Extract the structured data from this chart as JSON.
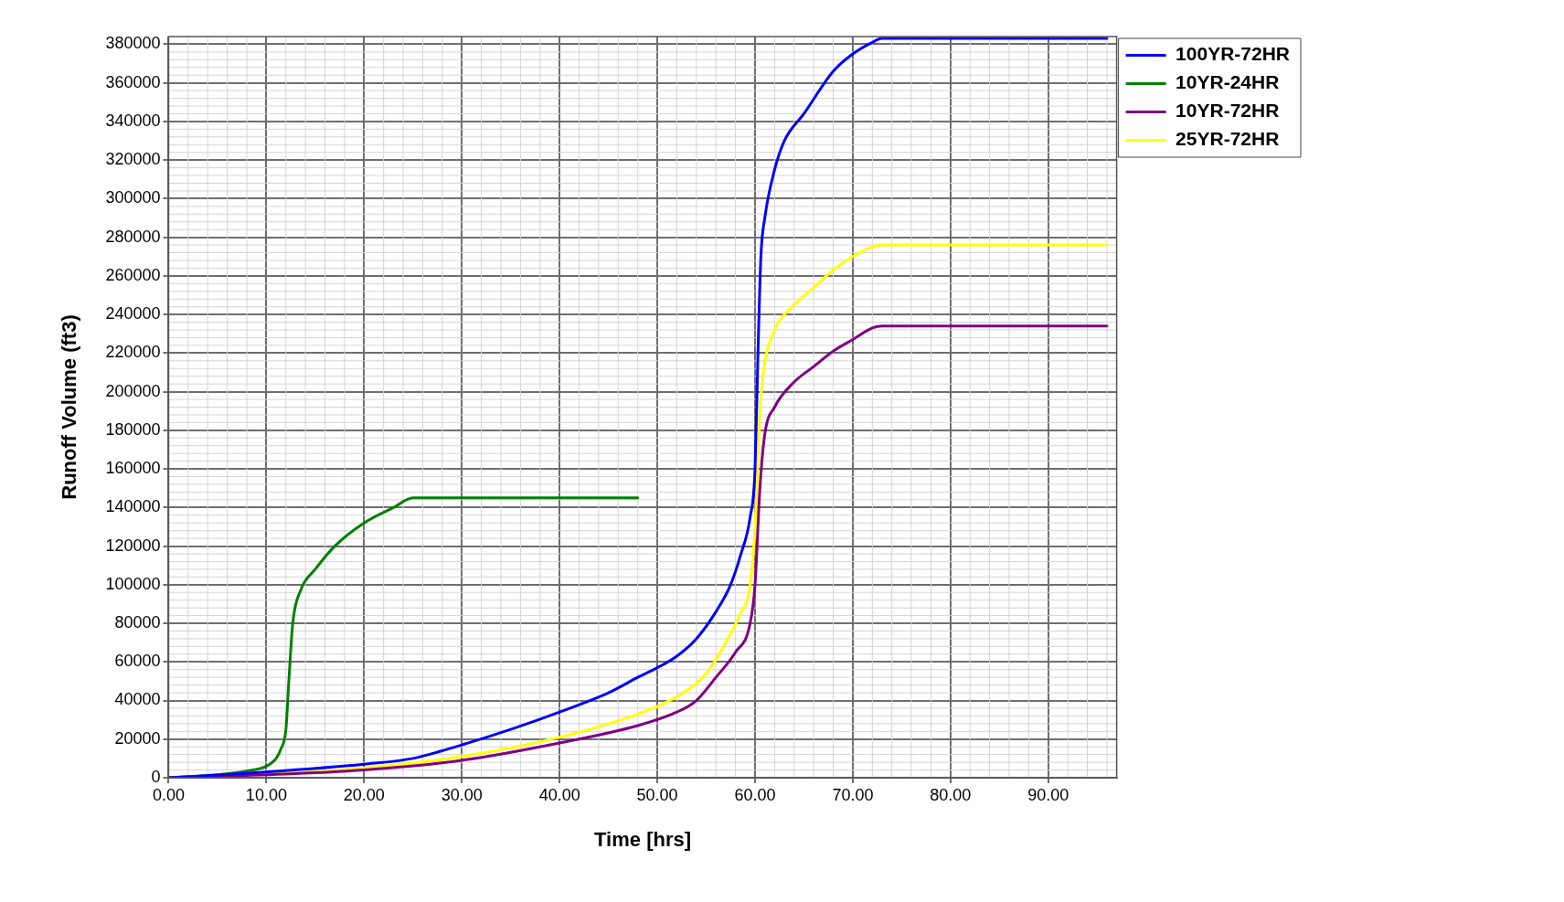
{
  "chart_data": {
    "type": "line",
    "xlabel": "Time [hrs]",
    "ylabel": "Runoff Volume (ft3)",
    "xlim": [
      0,
      97
    ],
    "ylim": [
      0,
      384000
    ],
    "xticks": [
      {
        "value": 0,
        "label": "0.00"
      },
      {
        "value": 10,
        "label": "10.00"
      },
      {
        "value": 20,
        "label": "20.00"
      },
      {
        "value": 30,
        "label": "30.00"
      },
      {
        "value": 40,
        "label": "40.00"
      },
      {
        "value": 50,
        "label": "50.00"
      },
      {
        "value": 60,
        "label": "60.00"
      },
      {
        "value": 70,
        "label": "70.00"
      },
      {
        "value": 80,
        "label": "80.00"
      },
      {
        "value": 90,
        "label": "90.00"
      }
    ],
    "yticks": [
      0,
      20000,
      40000,
      60000,
      80000,
      100000,
      120000,
      140000,
      160000,
      180000,
      200000,
      220000,
      240000,
      260000,
      280000,
      300000,
      320000,
      340000,
      360000,
      380000
    ],
    "grid": true,
    "legend": "top right",
    "marker": "none",
    "line_style": "solid",
    "series": [
      {
        "name": "100YR-72HR",
        "color": "#0000ff",
        "x": [
          0,
          10,
          20,
          25,
          30,
          35,
          40,
          45,
          48,
          50,
          52,
          54,
          56,
          57.5,
          58.5,
          59.5,
          60,
          60.3,
          60.6,
          61,
          62,
          63,
          65,
          68,
          70,
          72,
          73,
          96
        ],
        "values": [
          0,
          3000,
          7000,
          10000,
          17000,
          25000,
          34000,
          44000,
          52000,
          57000,
          63000,
          72000,
          86000,
          100000,
          115000,
          135000,
          160000,
          220000,
          270000,
          290000,
          315000,
          330000,
          344000,
          366000,
          375000,
          381000,
          383000,
          383000
        ]
      },
      {
        "name": "10YR-24HR",
        "color": "#008000",
        "x": [
          0,
          5,
          8,
          10,
          11,
          11.5,
          12,
          12.3,
          12.7,
          13.5,
          15,
          17,
          20,
          23,
          25,
          48
        ],
        "values": [
          0,
          1500,
          3500,
          6000,
          10000,
          15000,
          25000,
          50000,
          80000,
          97000,
          108000,
          120000,
          132000,
          140000,
          145000,
          145000
        ]
      },
      {
        "name": "10YR-72HR",
        "color": "#800080",
        "x": [
          0,
          10,
          20,
          30,
          40,
          48,
          52,
          54,
          56,
          58,
          59.5,
          60,
          60.5,
          61,
          62,
          64,
          66,
          68,
          70,
          72,
          73,
          96
        ],
        "values": [
          0,
          1500,
          4000,
          9000,
          18000,
          27000,
          34000,
          40000,
          52000,
          65000,
          80000,
          100000,
          150000,
          178000,
          192000,
          205000,
          213000,
          221000,
          227000,
          233000,
          234000,
          234000
        ]
      },
      {
        "name": "25YR-72HR",
        "color": "#ffff00",
        "x": [
          0,
          10,
          20,
          30,
          40,
          48,
          52,
          55,
          57,
          58.5,
          59.5,
          60,
          60.5,
          61,
          62,
          64,
          66,
          68,
          70,
          72,
          73,
          96
        ],
        "values": [
          0,
          2000,
          5000,
          11000,
          21000,
          33000,
          42000,
          54000,
          70000,
          85000,
          100000,
          130000,
          190000,
          215000,
          232000,
          245000,
          254000,
          263000,
          270000,
          275000,
          276000,
          276000
        ]
      }
    ]
  }
}
